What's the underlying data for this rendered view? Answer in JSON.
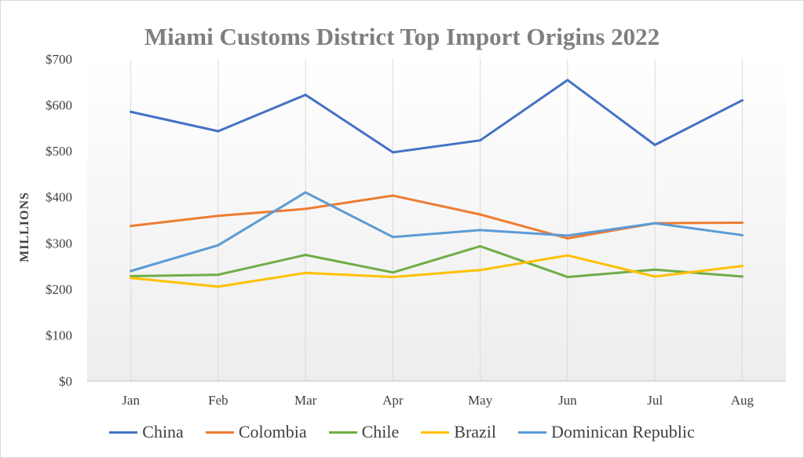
{
  "chart_data": {
    "type": "line",
    "title": "Miami Customs District Top Import Origins 2022",
    "xlabel": "",
    "ylabel": "MILLIONS",
    "categories": [
      "Jan",
      "Feb",
      "Mar",
      "Apr",
      "May",
      "Jun",
      "Jul",
      "Aug"
    ],
    "ylim": [
      0,
      700
    ],
    "yticks": [
      "$0",
      "$100",
      "$200",
      "$300",
      "$400",
      "$500",
      "$600",
      "$700"
    ],
    "ytick_values": [
      0,
      100,
      200,
      300,
      400,
      500,
      600,
      700
    ],
    "grid": "vertical",
    "legend": "bottom",
    "series": [
      {
        "name": "China",
        "color": "#4472c4",
        "values": [
          585,
          543,
          622,
          497,
          523,
          654,
          513,
          610
        ]
      },
      {
        "name": "Colombia",
        "color": "#ed7d31",
        "values": [
          337,
          359,
          374,
          403,
          362,
          310,
          343,
          344
        ]
      },
      {
        "name": "Chile",
        "color": "#70ad47",
        "values": [
          228,
          231,
          274,
          236,
          293,
          226,
          242,
          227
        ]
      },
      {
        "name": "Brazil",
        "color": "#ffc000",
        "values": [
          224,
          205,
          235,
          226,
          241,
          273,
          227,
          250
        ]
      },
      {
        "name": "Dominican Republic",
        "color": "#5b9bd5",
        "values": [
          239,
          295,
          410,
          313,
          328,
          316,
          343,
          317
        ]
      }
    ]
  }
}
